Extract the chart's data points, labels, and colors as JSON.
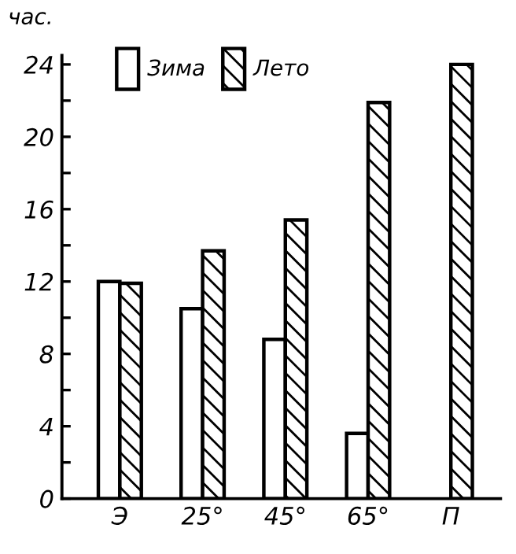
{
  "chart_data": {
    "type": "bar",
    "ylabel": "час.",
    "categories": [
      "Э",
      "25°",
      "45°",
      "65°",
      "П"
    ],
    "series": [
      {
        "name": "Зима",
        "color": "#ffffff",
        "values": [
          12,
          10.5,
          8.8,
          3.6,
          null
        ]
      },
      {
        "name": "Лето",
        "color": "#000000",
        "values": [
          11.9,
          13.7,
          15.4,
          21.9,
          24
        ]
      }
    ],
    "ylim": [
      0,
      24.5
    ],
    "yticks": [
      0,
      {
        "value": 2,
        "label": null
      },
      4,
      {
        "value": 6,
        "label": null
      },
      8,
      {
        "value": 10,
        "label": null
      },
      12,
      {
        "value": 14,
        "label": null
      },
      16,
      {
        "value": 18,
        "label": null
      },
      20,
      {
        "value": 22,
        "label": null
      },
      24
    ],
    "grid": false,
    "legend": "top left"
  }
}
